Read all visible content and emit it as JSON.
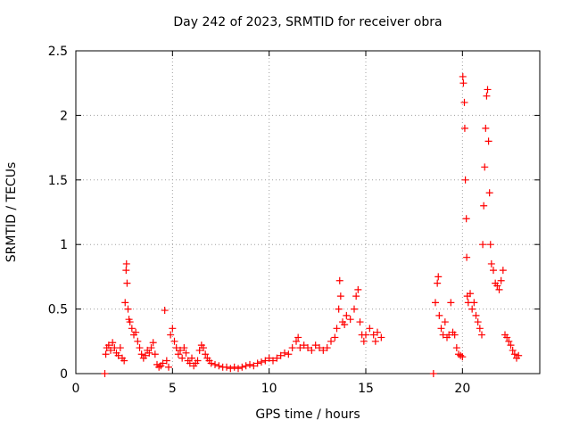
{
  "chart_data": {
    "type": "scatter",
    "title": "Day 242 of 2023, SRMTID for receiver obra",
    "xlabel": "GPS time / hours",
    "ylabel": "SRMTID / TECUs",
    "xlim": [
      0,
      24
    ],
    "ylim": [
      0,
      2.5
    ],
    "xticks": [
      0,
      5,
      10,
      15,
      20
    ],
    "yticks": [
      0,
      0.5,
      1,
      1.5,
      2,
      2.5
    ],
    "ytick_labels": [
      "0",
      "0.5",
      "1",
      "1.5",
      "2",
      "2.5"
    ],
    "grid": true,
    "marker": "+",
    "color": "#ff0000",
    "series": [
      {
        "name": "SRMTID",
        "points": [
          [
            1.5,
            0.0
          ],
          [
            1.55,
            0.15
          ],
          [
            1.6,
            0.2
          ],
          [
            1.7,
            0.22
          ],
          [
            1.8,
            0.18
          ],
          [
            1.9,
            0.24
          ],
          [
            2.0,
            0.2
          ],
          [
            2.1,
            0.16
          ],
          [
            2.2,
            0.14
          ],
          [
            2.3,
            0.2
          ],
          [
            2.4,
            0.12
          ],
          [
            2.5,
            0.1
          ],
          [
            2.55,
            0.55
          ],
          [
            2.6,
            0.8
          ],
          [
            2.62,
            0.85
          ],
          [
            2.65,
            0.7
          ],
          [
            2.7,
            0.5
          ],
          [
            2.75,
            0.42
          ],
          [
            2.8,
            0.4
          ],
          [
            2.9,
            0.35
          ],
          [
            3.0,
            0.3
          ],
          [
            3.1,
            0.32
          ],
          [
            3.2,
            0.25
          ],
          [
            3.3,
            0.2
          ],
          [
            3.4,
            0.15
          ],
          [
            3.5,
            0.12
          ],
          [
            3.6,
            0.14
          ],
          [
            3.7,
            0.18
          ],
          [
            3.8,
            0.16
          ],
          [
            3.9,
            0.2
          ],
          [
            4.0,
            0.24
          ],
          [
            4.1,
            0.15
          ],
          [
            4.2,
            0.07
          ],
          [
            4.3,
            0.05
          ],
          [
            4.4,
            0.06
          ],
          [
            4.5,
            0.08
          ],
          [
            4.6,
            0.49
          ],
          [
            4.7,
            0.1
          ],
          [
            4.8,
            0.05
          ],
          [
            4.9,
            0.3
          ],
          [
            5.0,
            0.35
          ],
          [
            5.1,
            0.25
          ],
          [
            5.2,
            0.2
          ],
          [
            5.3,
            0.15
          ],
          [
            5.4,
            0.18
          ],
          [
            5.5,
            0.12
          ],
          [
            5.6,
            0.2
          ],
          [
            5.7,
            0.16
          ],
          [
            5.8,
            0.1
          ],
          [
            5.9,
            0.08
          ],
          [
            6.0,
            0.12
          ],
          [
            6.1,
            0.06
          ],
          [
            6.2,
            0.08
          ],
          [
            6.3,
            0.1
          ],
          [
            6.4,
            0.18
          ],
          [
            6.5,
            0.22
          ],
          [
            6.6,
            0.2
          ],
          [
            6.7,
            0.15
          ],
          [
            6.8,
            0.12
          ],
          [
            6.9,
            0.1
          ],
          [
            7.0,
            0.08
          ],
          [
            7.2,
            0.07
          ],
          [
            7.4,
            0.06
          ],
          [
            7.6,
            0.05
          ],
          [
            7.8,
            0.05
          ],
          [
            8.0,
            0.04
          ],
          [
            8.2,
            0.05
          ],
          [
            8.4,
            0.04
          ],
          [
            8.6,
            0.05
          ],
          [
            8.8,
            0.06
          ],
          [
            9.0,
            0.07
          ],
          [
            9.2,
            0.06
          ],
          [
            9.4,
            0.08
          ],
          [
            9.6,
            0.09
          ],
          [
            9.8,
            0.1
          ],
          [
            10.0,
            0.12
          ],
          [
            10.2,
            0.1
          ],
          [
            10.4,
            0.12
          ],
          [
            10.6,
            0.14
          ],
          [
            10.8,
            0.16
          ],
          [
            11.0,
            0.15
          ],
          [
            11.2,
            0.2
          ],
          [
            11.4,
            0.25
          ],
          [
            11.5,
            0.28
          ],
          [
            11.6,
            0.2
          ],
          [
            11.8,
            0.22
          ],
          [
            12.0,
            0.2
          ],
          [
            12.2,
            0.18
          ],
          [
            12.4,
            0.22
          ],
          [
            12.6,
            0.2
          ],
          [
            12.8,
            0.18
          ],
          [
            13.0,
            0.2
          ],
          [
            13.2,
            0.25
          ],
          [
            13.4,
            0.28
          ],
          [
            13.5,
            0.35
          ],
          [
            13.6,
            0.5
          ],
          [
            13.65,
            0.72
          ],
          [
            13.7,
            0.6
          ],
          [
            13.8,
            0.4
          ],
          [
            13.9,
            0.38
          ],
          [
            14.0,
            0.45
          ],
          [
            14.2,
            0.42
          ],
          [
            14.4,
            0.5
          ],
          [
            14.5,
            0.6
          ],
          [
            14.6,
            0.65
          ],
          [
            14.7,
            0.4
          ],
          [
            14.8,
            0.3
          ],
          [
            14.9,
            0.25
          ],
          [
            15.0,
            0.3
          ],
          [
            15.2,
            0.35
          ],
          [
            15.4,
            0.3
          ],
          [
            15.5,
            0.25
          ],
          [
            15.6,
            0.32
          ],
          [
            15.8,
            0.28
          ],
          [
            18.5,
            0.0
          ],
          [
            18.6,
            0.55
          ],
          [
            18.7,
            0.7
          ],
          [
            18.75,
            0.75
          ],
          [
            18.8,
            0.45
          ],
          [
            18.9,
            0.35
          ],
          [
            19.0,
            0.3
          ],
          [
            19.1,
            0.4
          ],
          [
            19.2,
            0.28
          ],
          [
            19.3,
            0.3
          ],
          [
            19.4,
            0.55
          ],
          [
            19.5,
            0.32
          ],
          [
            19.6,
            0.3
          ],
          [
            19.7,
            0.2
          ],
          [
            19.8,
            0.15
          ],
          [
            19.9,
            0.14
          ],
          [
            20.0,
            0.13
          ],
          [
            20.02,
            2.3
          ],
          [
            20.05,
            2.25
          ],
          [
            20.1,
            2.1
          ],
          [
            20.12,
            1.9
          ],
          [
            20.15,
            1.5
          ],
          [
            20.2,
            1.2
          ],
          [
            20.22,
            0.9
          ],
          [
            20.25,
            0.6
          ],
          [
            20.3,
            0.55
          ],
          [
            20.4,
            0.62
          ],
          [
            20.5,
            0.5
          ],
          [
            20.6,
            0.55
          ],
          [
            20.7,
            0.45
          ],
          [
            20.8,
            0.4
          ],
          [
            20.9,
            0.35
          ],
          [
            21.0,
            0.3
          ],
          [
            21.05,
            1.0
          ],
          [
            21.1,
            1.3
          ],
          [
            21.15,
            1.6
          ],
          [
            21.2,
            1.9
          ],
          [
            21.25,
            2.15
          ],
          [
            21.3,
            2.2
          ],
          [
            21.35,
            1.8
          ],
          [
            21.4,
            1.4
          ],
          [
            21.45,
            1.0
          ],
          [
            21.5,
            0.85
          ],
          [
            21.6,
            0.8
          ],
          [
            21.7,
            0.7
          ],
          [
            21.8,
            0.68
          ],
          [
            21.9,
            0.65
          ],
          [
            22.0,
            0.72
          ],
          [
            22.1,
            0.8
          ],
          [
            22.2,
            0.3
          ],
          [
            22.3,
            0.28
          ],
          [
            22.4,
            0.25
          ],
          [
            22.5,
            0.22
          ],
          [
            22.6,
            0.18
          ],
          [
            22.7,
            0.15
          ],
          [
            22.8,
            0.12
          ],
          [
            22.9,
            0.14
          ]
        ]
      }
    ]
  }
}
